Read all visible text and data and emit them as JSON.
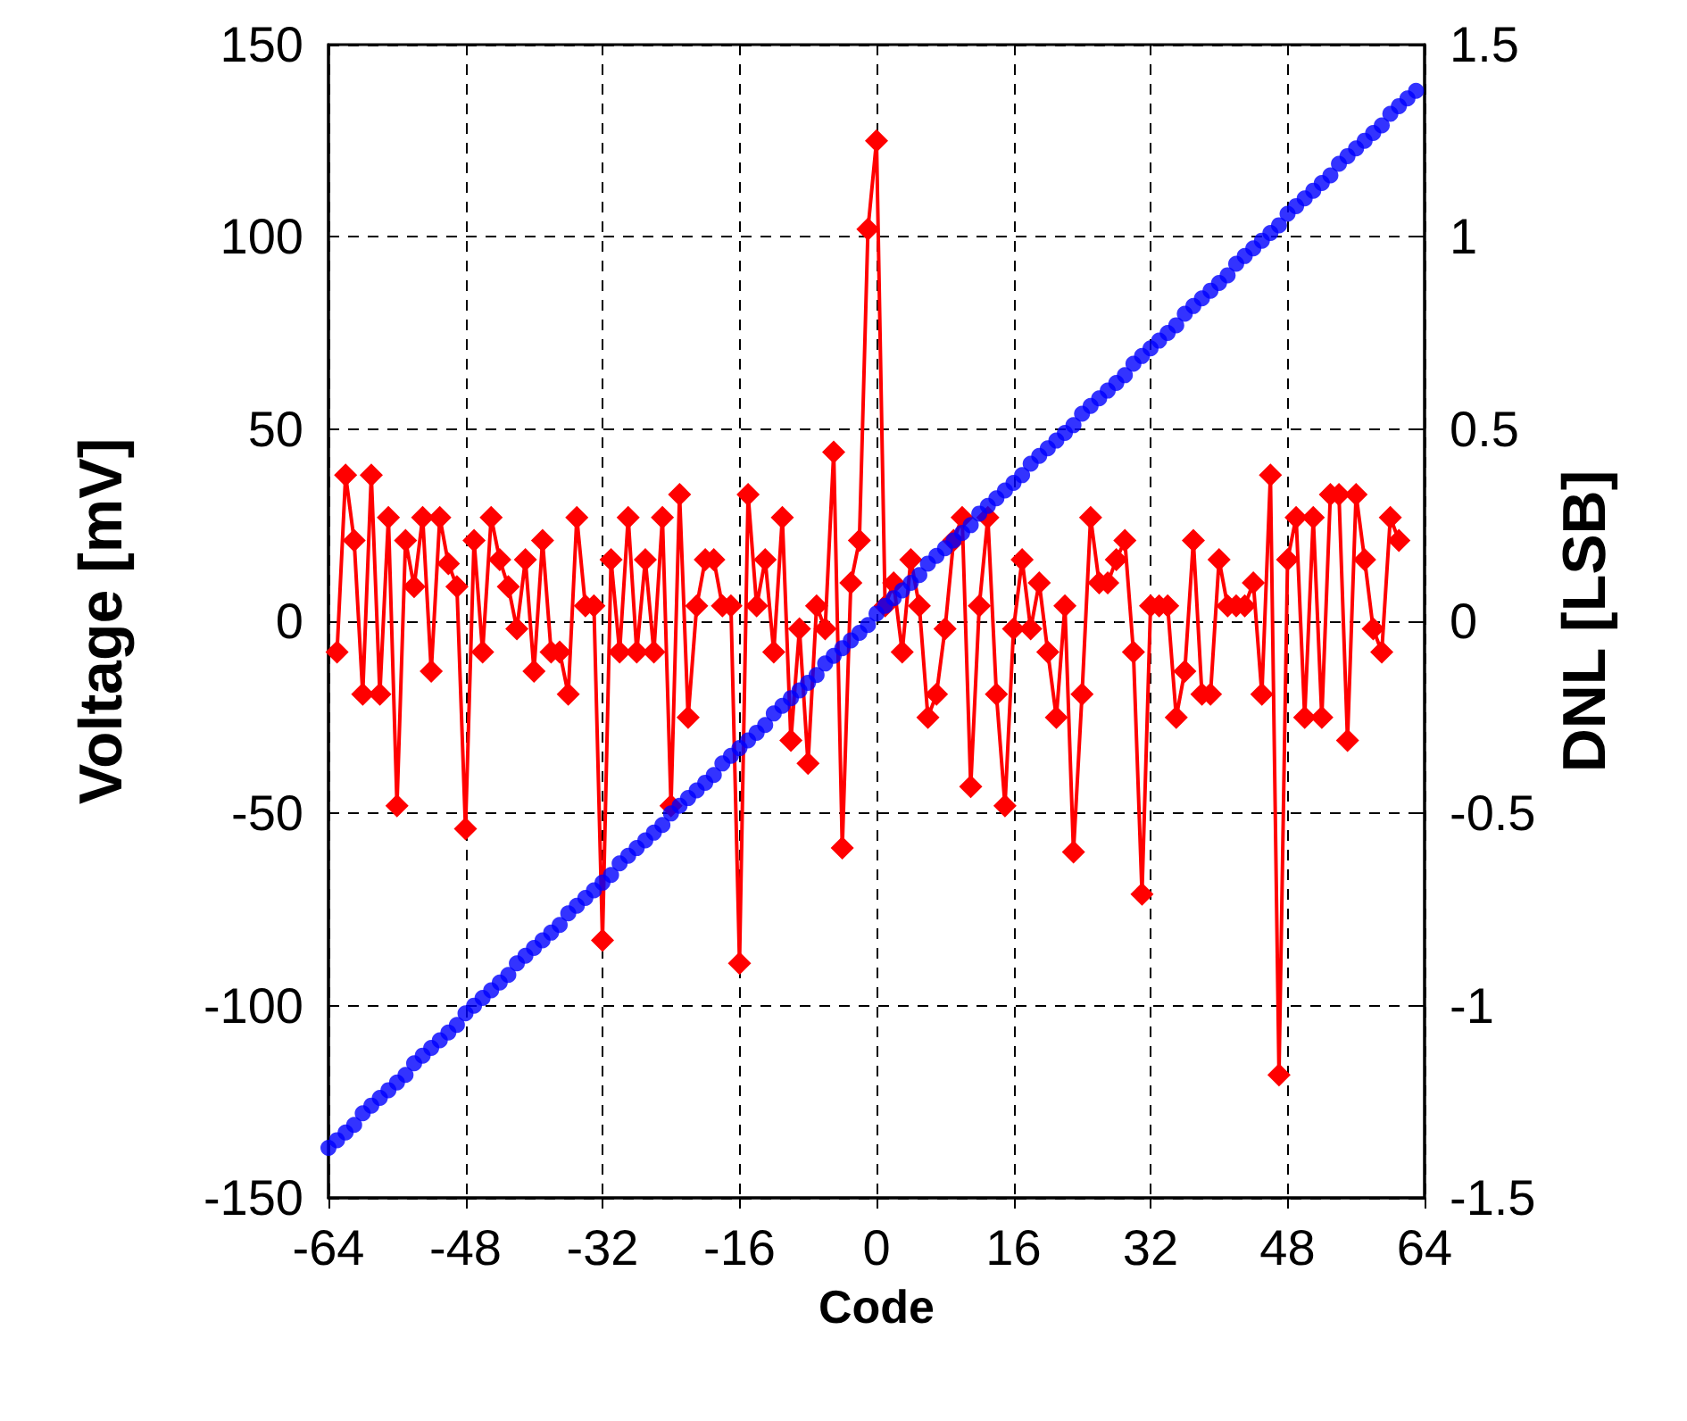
{
  "chart_data": {
    "type": "line",
    "xlabel": "Code",
    "ylabel": "Voltage [mV]",
    "y2label": "DNL [LSB]",
    "xlim": [
      -64,
      64
    ],
    "xticks": [
      -64,
      -48,
      -32,
      -16,
      0,
      16,
      32,
      48,
      64
    ],
    "ylim": [
      -150,
      150
    ],
    "yticks": [
      -150,
      -100,
      -50,
      0,
      50,
      100,
      150
    ],
    "y2lim": [
      -1.5,
      1.5
    ],
    "y2ticks": [
      -1.5,
      -1,
      -0.5,
      0,
      0.5,
      1,
      1.5
    ],
    "grid": true,
    "line_style": "solid",
    "series": [
      {
        "type": "scatter",
        "color": "#0000ff",
        "marker": "circle",
        "x": [
          -64,
          -63,
          -62,
          -61,
          -60,
          -59,
          -58,
          -57,
          -56,
          -55,
          -54,
          -53,
          -52,
          -51,
          -50,
          -49,
          -48,
          -47,
          -46,
          -45,
          -44,
          -43,
          -42,
          -41,
          -40,
          -39,
          -38,
          -37,
          -36,
          -35,
          -34,
          -33,
          -32,
          -31,
          -30,
          -29,
          -28,
          -27,
          -26,
          -25,
          -24,
          -23,
          -22,
          -21,
          -20,
          -19,
          -18,
          -17,
          -16,
          -15,
          -14,
          -13,
          -12,
          -11,
          -10,
          -9,
          -8,
          -7,
          -6,
          -5,
          -4,
          -3,
          -2,
          -1,
          0,
          1,
          2,
          3,
          4,
          5,
          6,
          7,
          8,
          9,
          10,
          11,
          12,
          13,
          14,
          15,
          16,
          17,
          18,
          19,
          20,
          21,
          22,
          23,
          24,
          25,
          26,
          27,
          28,
          29,
          30,
          31,
          32,
          33,
          34,
          35,
          36,
          37,
          38,
          39,
          40,
          41,
          42,
          43,
          44,
          45,
          46,
          47,
          48,
          49,
          50,
          51,
          52,
          53,
          54,
          55,
          56,
          57,
          58,
          59,
          60,
          61,
          62,
          63
        ],
        "values": [
          -137,
          -135,
          -133,
          -131,
          -128,
          -126,
          -124,
          -122,
          -120,
          -118,
          -115,
          -113,
          -111,
          -109,
          -107,
          -105,
          -102,
          -100,
          -98,
          -96,
          -94,
          -92,
          -89,
          -87,
          -85,
          -83,
          -81,
          -79,
          -76,
          -74,
          -72,
          -70,
          -68,
          -66,
          -63,
          -61,
          -59,
          -57,
          -55,
          -53,
          -50,
          -48,
          -46,
          -44,
          -42,
          -40,
          -37,
          -35,
          -33,
          -31,
          -29,
          -27,
          -24,
          -22,
          -20,
          -18,
          -16,
          -14,
          -11,
          -9,
          -7,
          -5,
          -3,
          -1,
          2,
          4,
          6,
          8,
          10,
          12,
          15,
          17,
          19,
          21,
          23,
          25,
          28,
          30,
          32,
          34,
          36,
          38,
          41,
          43,
          45,
          47,
          49,
          51,
          54,
          56,
          58,
          60,
          62,
          64,
          67,
          69,
          71,
          73,
          75,
          77,
          80,
          82,
          84,
          86,
          88,
          90,
          93,
          95,
          97,
          99,
          101,
          103,
          106,
          108,
          110,
          112,
          114,
          116,
          119,
          121,
          123,
          125,
          127,
          129,
          132,
          134,
          136,
          138
        ]
      },
      {
        "color": "#ff0000",
        "marker": "diamond",
        "axis": "y2",
        "x": [
          -63,
          -62,
          -61,
          -60,
          -59,
          -58,
          -57,
          -56,
          -55,
          -54,
          -53,
          -52,
          -51,
          -50,
          -49,
          -48,
          -47,
          -46,
          -45,
          -44,
          -43,
          -42,
          -41,
          -40,
          -39,
          -38,
          -37,
          -36,
          -35,
          -34,
          -33,
          -32,
          -31,
          -30,
          -29,
          -28,
          -27,
          -26,
          -25,
          -24,
          -23,
          -22,
          -21,
          -20,
          -19,
          -18,
          -17,
          -16,
          -15,
          -14,
          -13,
          -12,
          -11,
          -10,
          -9,
          -8,
          -7,
          -6,
          -5,
          -4,
          -3,
          -2,
          -1,
          0,
          1,
          2,
          3,
          4,
          5,
          6,
          7,
          8,
          9,
          10,
          11,
          12,
          13,
          14,
          15,
          16,
          17,
          18,
          19,
          20,
          21,
          22,
          23,
          24,
          25,
          26,
          27,
          28,
          29,
          30,
          31,
          32,
          33,
          34,
          35,
          36,
          37,
          38,
          39,
          40,
          41,
          42,
          43,
          44,
          45,
          46,
          47,
          48,
          49,
          50,
          51,
          52,
          53,
          54,
          55,
          56,
          57,
          58,
          59,
          60,
          61
        ],
        "values": [
          -0.08,
          0.38,
          0.21,
          -0.19,
          0.38,
          -0.19,
          0.27,
          -0.48,
          0.21,
          0.09,
          0.27,
          -0.13,
          0.27,
          0.15,
          0.09,
          -0.54,
          0.21,
          -0.08,
          0.27,
          0.16,
          0.09,
          -0.02,
          0.16,
          -0.13,
          0.21,
          -0.08,
          -0.08,
          -0.19,
          0.27,
          0.04,
          0.04,
          -0.83,
          0.16,
          -0.08,
          0.27,
          -0.08,
          0.16,
          -0.08,
          0.27,
          -0.48,
          0.33,
          -0.25,
          0.04,
          0.16,
          0.16,
          0.04,
          0.04,
          -0.89,
          0.33,
          0.04,
          0.16,
          -0.08,
          0.27,
          -0.31,
          -0.02,
          -0.37,
          0.04,
          -0.02,
          0.44,
          -0.59,
          0.1,
          0.21,
          1.02,
          1.25,
          0.04,
          0.1,
          -0.08,
          0.16,
          0.04,
          -0.25,
          -0.19,
          -0.02,
          0.21,
          0.27,
          -0.43,
          0.04,
          0.27,
          -0.19,
          -0.48,
          -0.02,
          0.16,
          -0.02,
          0.1,
          -0.08,
          -0.25,
          0.04,
          -0.6,
          -0.19,
          0.27,
          0.1,
          0.1,
          0.16,
          0.21,
          -0.08,
          -0.71,
          0.04,
          0.04,
          0.04,
          -0.25,
          -0.13,
          0.21,
          -0.19,
          -0.19,
          0.16,
          0.04,
          0.04,
          0.04,
          0.1,
          -0.19,
          0.38,
          -1.18,
          0.16,
          0.27,
          -0.25,
          0.27,
          -0.25,
          0.33,
          0.33,
          -0.31,
          0.33,
          0.16,
          -0.02,
          -0.08,
          0.27,
          0.21
        ]
      }
    ]
  }
}
